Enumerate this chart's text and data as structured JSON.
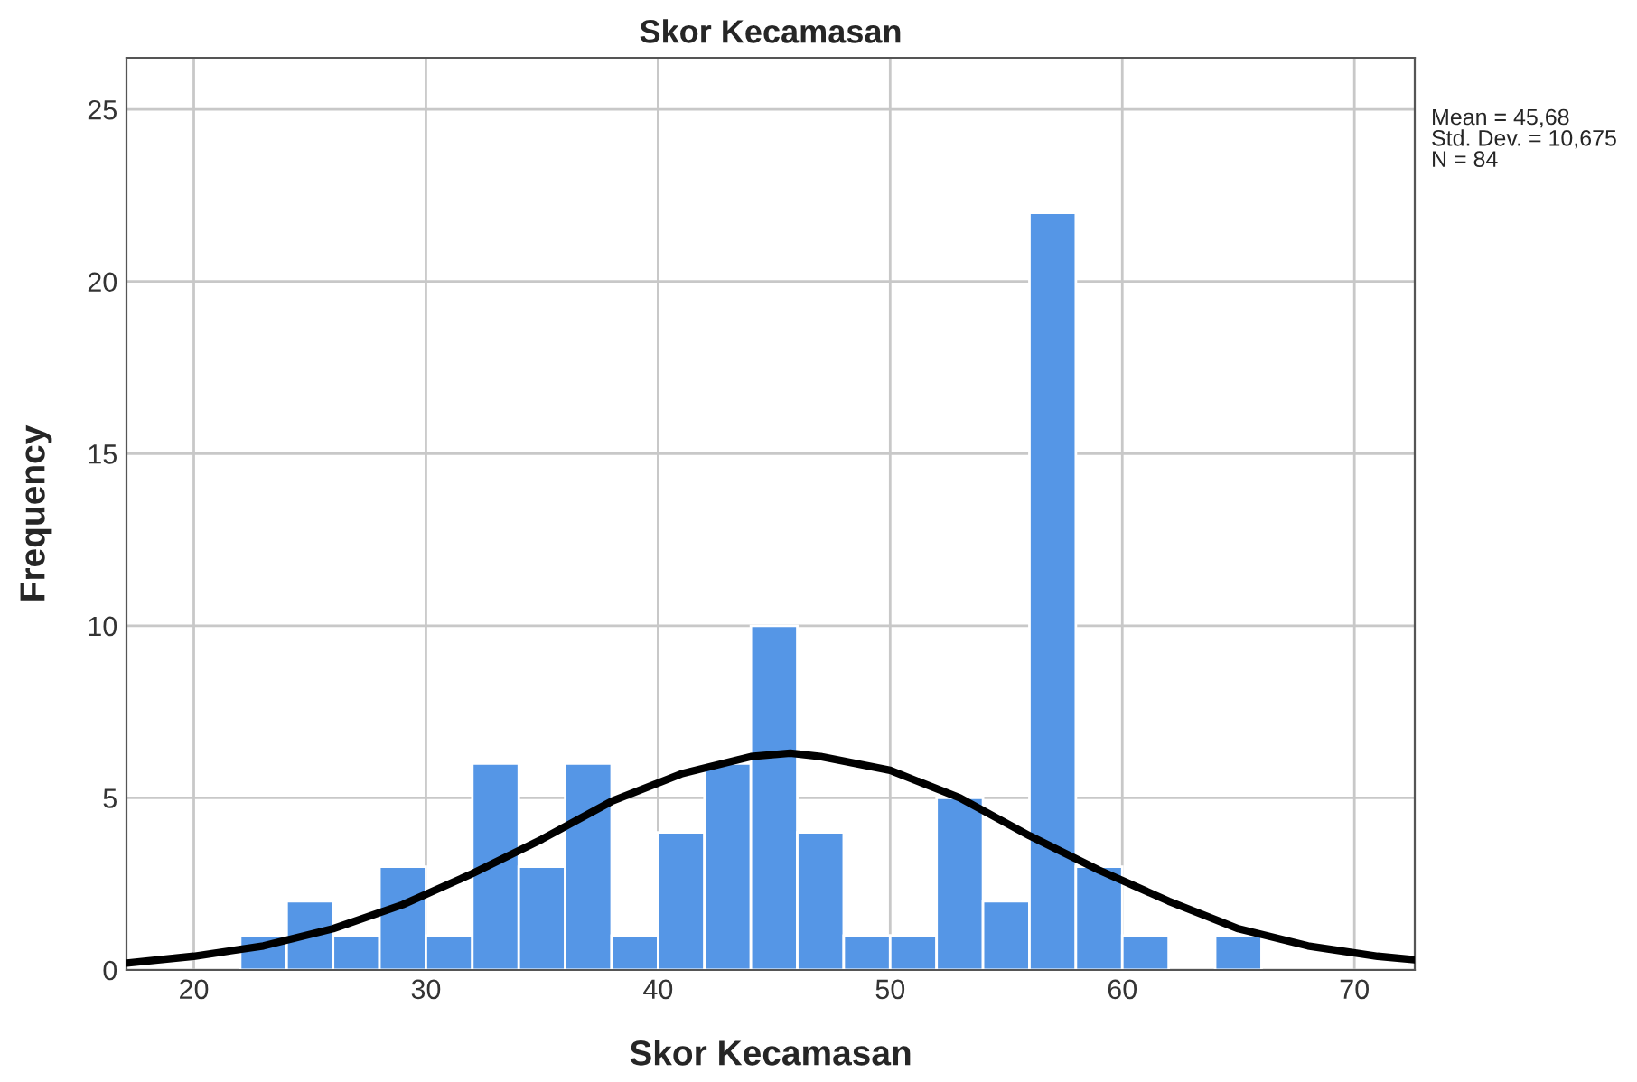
{
  "chart_data": {
    "type": "histogram",
    "title": "Skor Kecamasan",
    "xlabel": "Skor Kecamasan",
    "ylabel": "Frequency",
    "series": [
      {
        "color": "#5596e6",
        "bins": [
          22,
          24,
          26,
          28,
          30,
          32,
          34,
          36,
          38,
          40,
          42,
          44,
          46,
          48,
          50,
          52,
          54,
          56,
          58,
          60,
          62,
          64,
          66
        ],
        "values": [
          1,
          2,
          1,
          3,
          1,
          6,
          3,
          6,
          1,
          4,
          6,
          10,
          4,
          1,
          1,
          5,
          2,
          22,
          3,
          1,
          0,
          1
        ]
      },
      {
        "type": "line",
        "color": "#000000",
        "x": [
          17.1,
          20,
          23,
          26,
          29,
          32,
          35,
          38,
          41,
          44,
          45.7,
          47,
          50,
          53,
          56,
          59,
          62,
          65,
          68,
          71,
          72.6
        ],
        "values": [
          0.2,
          0.4,
          0.7,
          1.2,
          1.9,
          2.8,
          3.8,
          4.9,
          5.7,
          6.2,
          6.3,
          6.2,
          5.8,
          5.0,
          3.9,
          2.9,
          2.0,
          1.2,
          0.7,
          0.4,
          0.3
        ]
      }
    ],
    "xlim": [
      17.1,
      72.6
    ],
    "ylim": [
      0,
      26.5
    ],
    "xticks": [
      20,
      30,
      40,
      50,
      60,
      70
    ],
    "yticks": [
      0,
      5,
      10,
      15,
      20,
      25
    ],
    "grid": true,
    "legend": false,
    "annotations": [
      "Mean = 45,68\nStd. Dev. = 10,675\nN = 84"
    ]
  }
}
